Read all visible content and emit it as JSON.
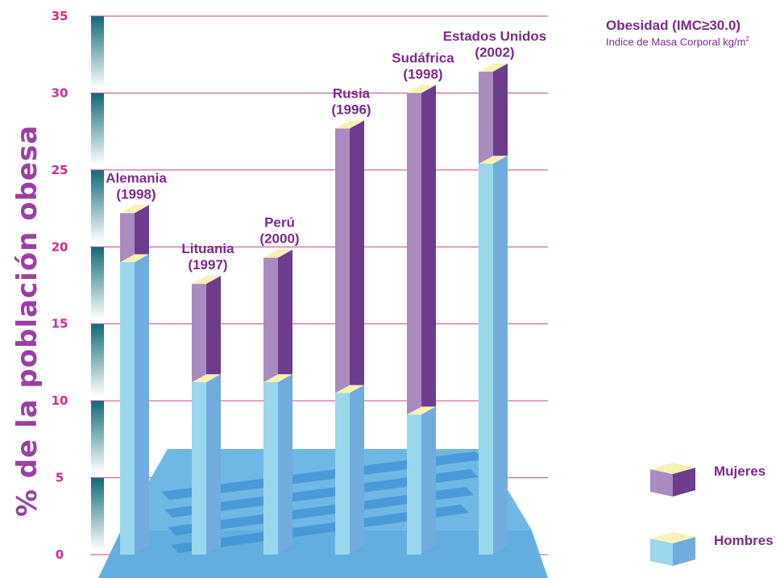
{
  "info": {
    "title": "Obesidad (IMC≥30.0)",
    "subtitle": "Indice de Masa Corporal kg/m",
    "subtitle_sup": "2"
  },
  "chart_data": {
    "type": "bar",
    "ylabel": "% de la población obesa",
    "ylim": [
      0,
      35
    ],
    "yticks": [
      "0",
      "5",
      "10",
      "15",
      "20",
      "25",
      "30",
      "35"
    ],
    "grid": true,
    "legend_position": "right",
    "categories": [
      {
        "name": "Alemania",
        "year": "(1998)"
      },
      {
        "name": "Lituania",
        "year": "(1997)"
      },
      {
        "name": "Perú",
        "year": "(2000)"
      },
      {
        "name": "Rusia",
        "year": "(1996)"
      },
      {
        "name": "Sudáfrica",
        "year": "(1998)"
      },
      {
        "name": "Estados Unidos",
        "year": "(2002)"
      }
    ],
    "series": [
      {
        "name": "Mujeres",
        "values": [
          22.2,
          17.6,
          19.3,
          27.7,
          30.0,
          31.4
        ],
        "color": "#a98bbf"
      },
      {
        "name": "Hombres",
        "values": [
          19.0,
          11.2,
          11.2,
          10.5,
          9.1,
          25.4
        ],
        "color": "#9ad6ec"
      }
    ]
  }
}
